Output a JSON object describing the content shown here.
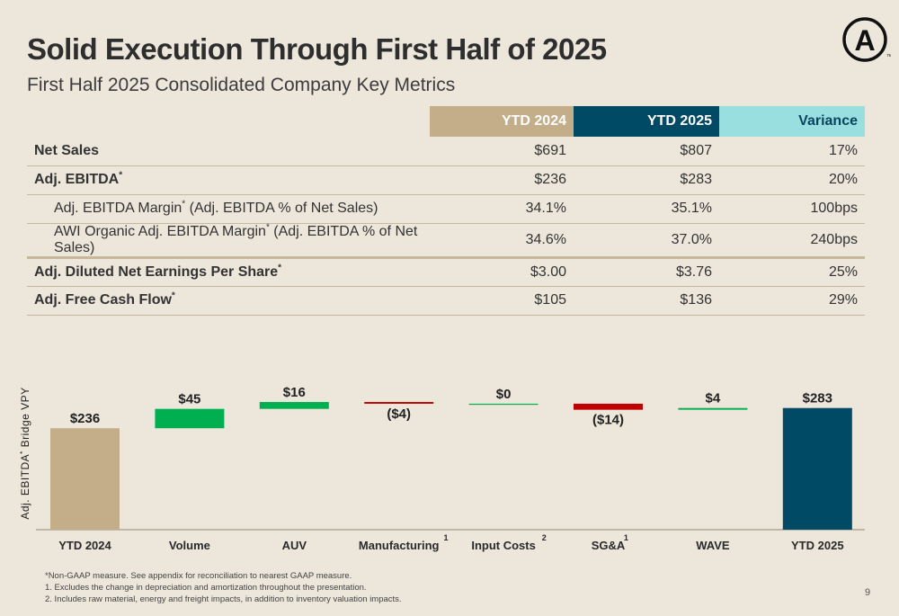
{
  "header": {
    "title": "Solid Execution Through First Half of 2025",
    "subtitle": "First Half 2025 Consolidated Company Key Metrics"
  },
  "logo": {
    "letter": "A",
    "mark": "™"
  },
  "table": {
    "columns": [
      "YTD 2024",
      "YTD 2025",
      "Variance"
    ],
    "rows": [
      {
        "label": "Net Sales",
        "sup": "",
        "suffix": "",
        "values": [
          "$691",
          "$807",
          "17%"
        ]
      },
      {
        "label": "Adj. EBITDA",
        "sup": "*",
        "suffix": "",
        "values": [
          "$236",
          "$283",
          "20%"
        ]
      },
      {
        "label": "Adj. EBITDA Margin",
        "sup": "*",
        "suffix": " (Adj. EBITDA % of Net Sales)",
        "values": [
          "34.1%",
          "35.1%",
          "100bps"
        ]
      },
      {
        "label": "AWI Organic Adj. EBITDA Margin",
        "sup": "*",
        "suffix": " (Adj. EBITDA % of Net Sales)",
        "values": [
          "34.6%",
          "37.0%",
          "240bps"
        ]
      },
      {
        "label": "Adj. Diluted Net Earnings Per Share",
        "sup": "*",
        "suffix": "",
        "values": [
          "$3.00",
          "$3.76",
          "25%"
        ]
      },
      {
        "label": "Adj. Free Cash Flow",
        "sup": "*",
        "suffix": "",
        "values": [
          "$105",
          "$136",
          "29%"
        ]
      }
    ]
  },
  "chart_data": {
    "type": "bar",
    "subtype": "waterfall",
    "ylabel_main": "Adj. EBITDA",
    "ylabel_sup": "*",
    "ylabel_rest": " Bridge VPY",
    "categories": [
      "YTD 2024",
      "Volume",
      "AUV",
      "Manufacturing",
      "Input Costs",
      "SG&A",
      "WAVE",
      "YTD 2025"
    ],
    "category_footnotes": [
      "",
      "",
      "",
      "1",
      "2",
      "1",
      "",
      ""
    ],
    "values": [
      236,
      45,
      16,
      -4,
      0,
      -14,
      4,
      283
    ],
    "labels": [
      "$236",
      "$45",
      "$16",
      "($4)",
      "$0",
      "($14)",
      "$4",
      "$283"
    ],
    "bar_kinds": [
      "total",
      "increase",
      "increase",
      "decrease",
      "increase",
      "decrease",
      "increase",
      "total"
    ],
    "colors": {
      "start_total": "#c4ae8a",
      "increase": "#00b050",
      "decrease": "#c00000",
      "end_total": "#004a66"
    }
  },
  "footnotes": [
    "*Non-GAAP measure. See appendix for reconciliation to nearest GAAP measure.",
    "1.  Excludes the change in depreciation and amortization throughout the presentation.",
    "2.  Includes raw material, energy and freight impacts, in addition to inventory valuation impacts."
  ],
  "page_number": "9"
}
